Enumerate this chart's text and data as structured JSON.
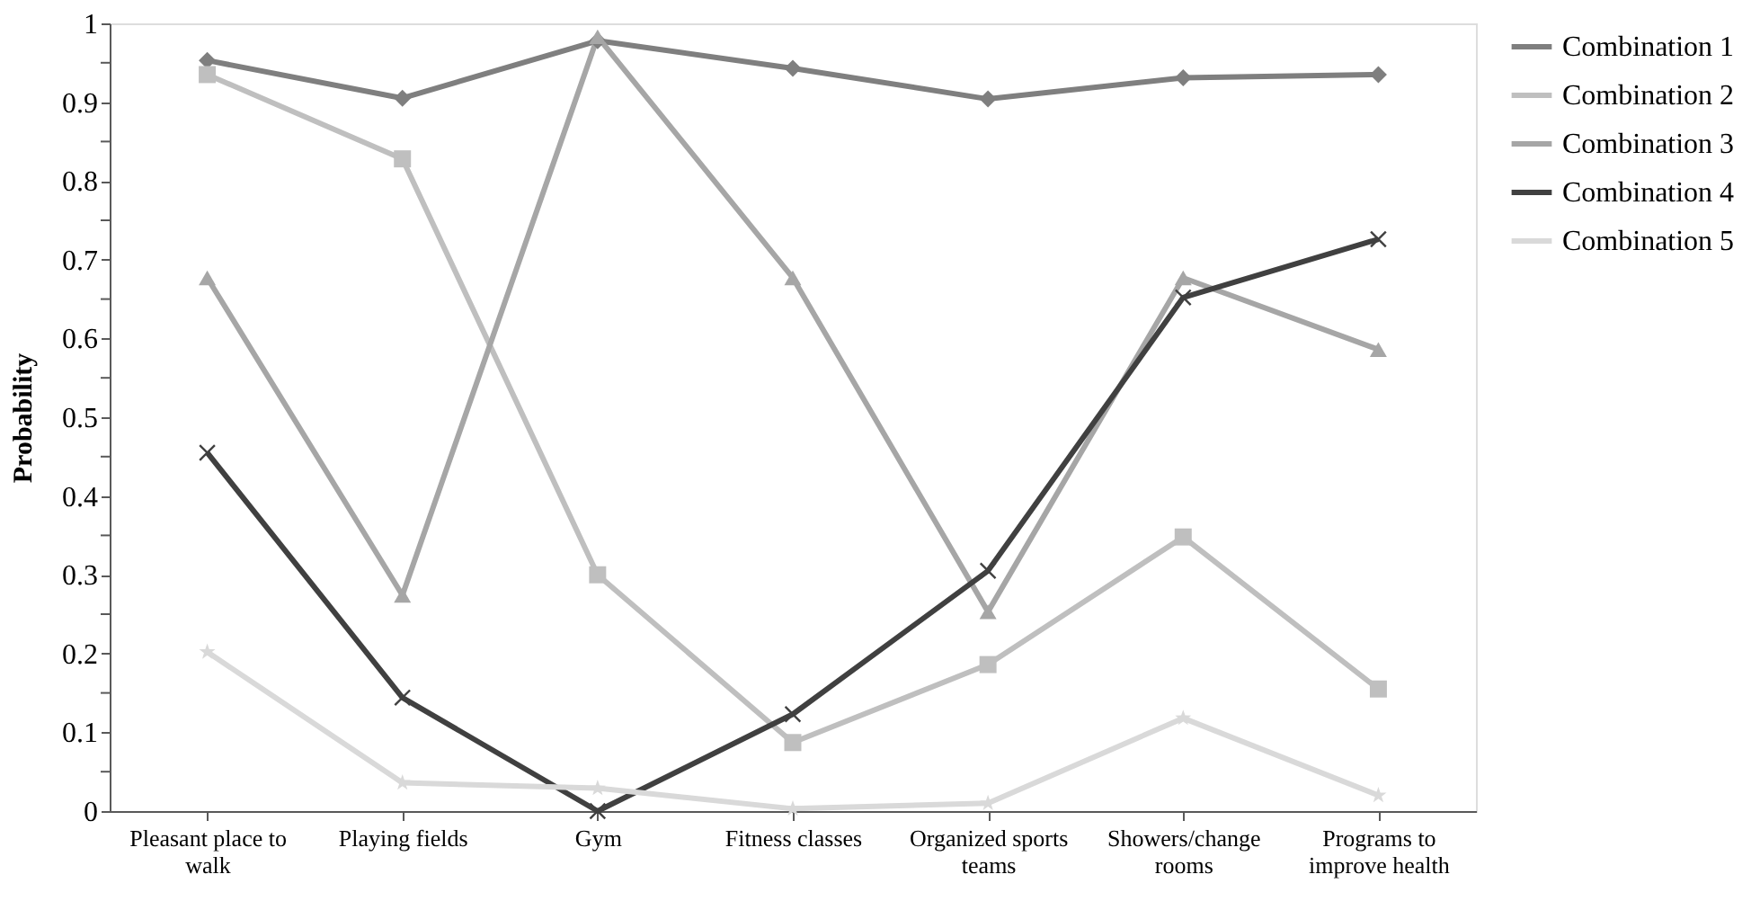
{
  "chart_data": {
    "type": "line",
    "ylabel": "Probability",
    "categories": [
      "Pleasant place to walk",
      "Playing fields",
      "Gym",
      "Fitness classes",
      "Organized sports teams",
      "Showers/change rooms",
      "Programs to improve health"
    ],
    "series": [
      {
        "name": "Combination 1",
        "color": "#7f7f7f",
        "marker": "diamond",
        "values": [
          0.953,
          0.905,
          0.978,
          0.943,
          0.904,
          0.931,
          0.935
        ]
      },
      {
        "name": "Combination 2",
        "color": "#bfbfbf",
        "marker": "square",
        "values": [
          0.935,
          0.828,
          0.3,
          0.087,
          0.186,
          0.348,
          0.155
        ]
      },
      {
        "name": "Combination 3",
        "color": "#a6a6a6",
        "marker": "triangle",
        "values": [
          0.677,
          0.274,
          0.983,
          0.677,
          0.253,
          0.677,
          0.586
        ]
      },
      {
        "name": "Combination 4",
        "color": "#404040",
        "marker": "cross",
        "values": [
          0.455,
          0.144,
          0.0,
          0.123,
          0.305,
          0.652,
          0.726
        ]
      },
      {
        "name": "Combination 5",
        "color": "#d9d9d9",
        "marker": "star",
        "values": [
          0.202,
          0.036,
          0.029,
          0.003,
          0.01,
          0.118,
          0.02
        ]
      }
    ],
    "ylim": [
      0,
      1
    ],
    "yticks": [
      0,
      {
        "value": 0.05,
        "label": null
      },
      0.1,
      {
        "value": 0.15,
        "label": null
      },
      0.2,
      {
        "value": 0.25,
        "label": null
      },
      0.3,
      {
        "value": 0.35,
        "label": null
      },
      0.4,
      {
        "value": 0.45,
        "label": null
      },
      0.5,
      {
        "value": 0.55,
        "label": null
      },
      0.6,
      {
        "value": 0.65,
        "label": null
      },
      0.7,
      {
        "value": 0.75,
        "label": null
      },
      0.8,
      {
        "value": 0.85,
        "label": null
      },
      0.9,
      {
        "value": 0.95,
        "label": null
      },
      1
    ],
    "grid": false,
    "legend": "right",
    "line_style": "solid"
  }
}
